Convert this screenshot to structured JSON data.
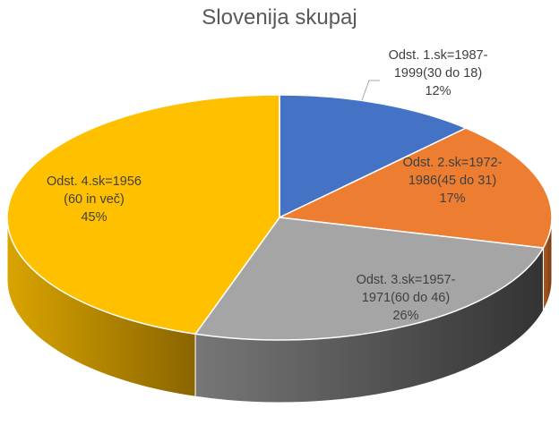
{
  "chart_data": {
    "type": "pie",
    "title": "Slovenija skupaj",
    "three_d": true,
    "slices": [
      {
        "label": "Odst. 1.sk=1987-1999(30 do 18)",
        "line1": "Odst. 1.sk=1987-",
        "line2": "1999(30 do 18)",
        "pct": "12%",
        "value": 12,
        "color": "#4472C4",
        "side": "#2F528F"
      },
      {
        "label": "Odst. 2.sk=1972-1986(45 do 31)",
        "line1": "Odst. 2.sk=1972-",
        "line2": "1986(45 do 31)",
        "pct": "17%",
        "value": 17,
        "color": "#ED7D31",
        "side": "#AE5A21"
      },
      {
        "label": "Odst. 3.sk=1957-1971(60 do 46)",
        "line1": "Odst. 3.sk=1957-",
        "line2": "1971(60 do 46)",
        "pct": "26%",
        "value": 26,
        "color": "#A5A5A5",
        "side": "#3a3a3a"
      },
      {
        "label": "Odst. 4.sk=1956 (60 in več)",
        "line1": "Odst. 4.sk=1956",
        "line2": "(60 in več)",
        "pct": "45%",
        "value": 45,
        "color": "#FFC000",
        "side": "#B38600"
      }
    ]
  }
}
